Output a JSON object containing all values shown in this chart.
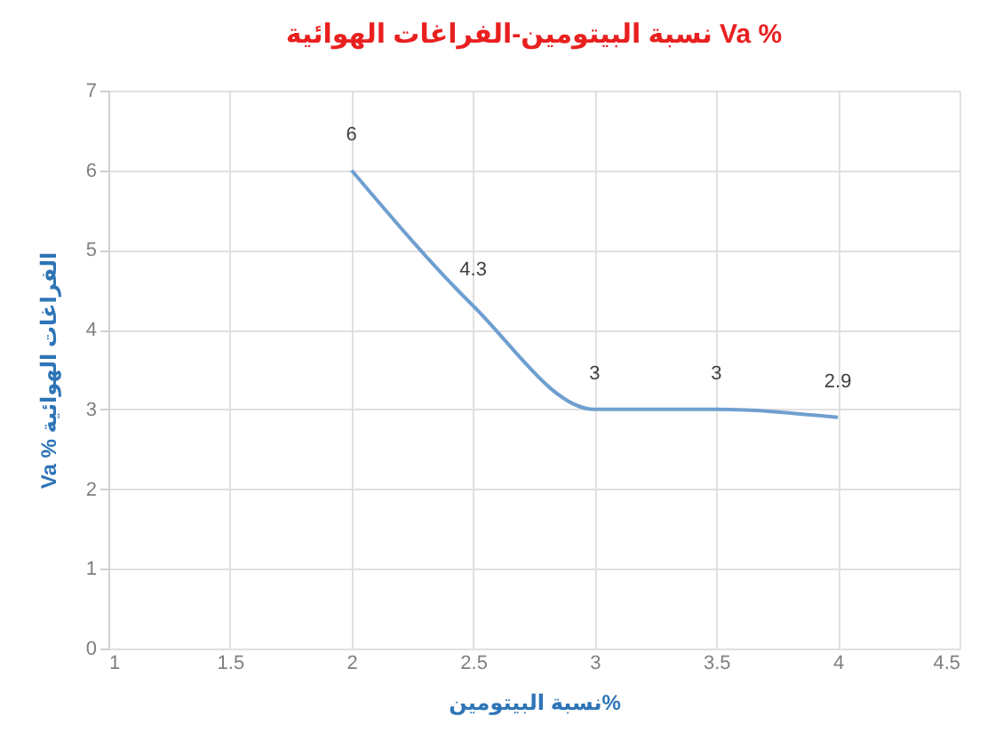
{
  "chart_data": {
    "type": "line",
    "title": "نسبة البيتومين-الفراغات الهوائية  Va %",
    "xlabel": "نسبة البيتومين%",
    "ylabel": "Va %  الفراغات الهوائية",
    "x": [
      2,
      2.5,
      3,
      3.5,
      4
    ],
    "series": [
      {
        "color": "#6f9fd0",
        "values": [
          6,
          4.3,
          3,
          3,
          2.9
        ]
      }
    ],
    "xlim": [
      1,
      4.5
    ],
    "xticks": [
      1,
      1.5,
      2,
      2.5,
      3,
      3.5,
      4,
      4.5
    ],
    "ylim": [
      0,
      7
    ],
    "yticks": [
      0,
      1,
      2,
      3,
      4,
      5,
      6,
      7
    ],
    "grid": true,
    "data_labels": true,
    "marker": "none",
    "line_style": "solid"
  }
}
